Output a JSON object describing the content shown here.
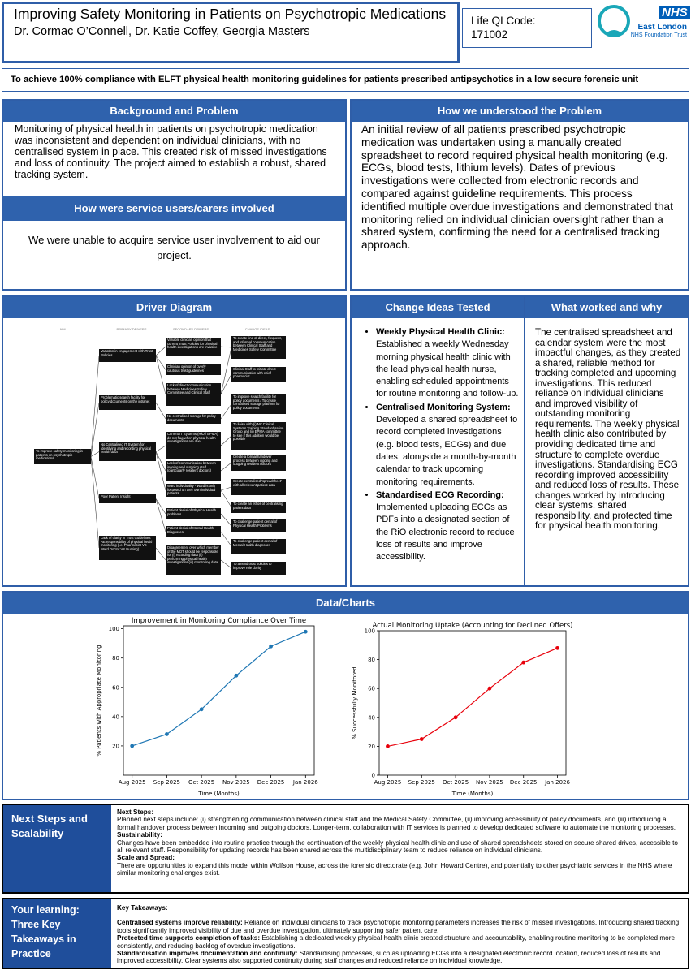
{
  "header": {
    "title": "Improving Safety Monitoring in Patients on Psychotropic Medications",
    "authors": "Dr. Cormac O’Connell, Dr. Katie Coffey, Georgia Masters",
    "qi_label": "Life QI Code:",
    "qi_code": "171002",
    "logo": {
      "nhs": "NHS",
      "org": "East London",
      "trust": "NHS Foundation Trust"
    }
  },
  "aim": "To achieve 100% compliance with ELFT physical health monitoring guidelines for patients prescribed antipsychotics in a low secure forensic unit",
  "background": {
    "heading": "Background and Problem",
    "text": "Monitoring of physical health in patients on psychotropic medication was inconsistent and dependent on individual clinicians, with no centralised system in place. This created risk of missed investigations and loss of continuity. The project aimed to establish a robust, shared tracking system."
  },
  "service_users": {
    "heading": "How were service users/carers involved",
    "text": "We were unable to acquire service user involvement to aid our project."
  },
  "understanding": {
    "heading": "How we understood the Problem",
    "text": "An initial review of all patients prescribed psychotropic medication was undertaken using a manually created spreadsheet to record required physical health monitoring (e.g. ECGs, blood tests, lithium levels). Dates of previous investigations were collected from electronic records and compared against guideline requirements. This process identified multiple overdue investigations and demonstrated that monitoring relied on individual clinician oversight rather than a shared system, confirming the need for a centralised tracking approach."
  },
  "driver_diagram": {
    "heading": "Driver Diagram",
    "column_headers": [
      "AIM",
      "PRIMARY DRIVERS",
      "SECONDARY DRIVERS",
      "CHANGE IDEAS"
    ],
    "aim": "To improve safety monitoring in patients on psychotropic medications",
    "primary_drivers": [
      "Variation in engagement with Trust Policies",
      "Problematic search facility for policy documents on the intranet",
      "No Centralised IT System for Identifying and recording physical health data",
      "Poor Patient Insight",
      "Lack of clarity in Trust Guidelines RE responsibility of physical health monitoring (i.e. Pharmacist VS Ward Doctor VS Nursing)"
    ],
    "secondary_drivers": [
      "Variable clinician opinion that current Trust Policies for physical health investigations are invasive",
      "Clinician opinion of overly cautious trust guidelines",
      "Lack of direct communication between Medicines Safety Committee and Clinical Staff",
      "No centralised storage for policy documents",
      "Current IT Systems (RiO / EPMA) do not flag when physical health investigations are due",
      "Lack of communication between ingoing and outgoing staff (particularly resident doctors)",
      "Ward individuality - Ward is only focussed on their own individual patients",
      "Patient denial of Physical Health problems",
      "Patient denial of Mental Health Diagnoses",
      "Disagreement over which member of the MDT should be responsible for (i) recording data (ii) performing physical health investigations (iii) monitoring data"
    ],
    "change_ideas": [
      "To create line of direct, frequent, and informal communication between Clinical Staff and Medicines Safety Committee",
      "Clinical Staff to initiate direct communication with chief pharmacist",
      "To improve search facility for policy documents / To create centralised storage platform for policy documents",
      "To liaise with (i) NV Clinical Systems Training Standardisation Group and (ii) EPMA committee to see if this addition would be possible",
      "Create a formal handover process between ingoing and outgoing resident doctors",
      "Create centralised 'spreadsheet' with all relevant patient data",
      "To create an ethos of centralising patient data",
      "To challenge patient denial of Physical Health Problems",
      "To challenge patient denial of Mental Health diagnoses",
      "To amend trust policies to improve role clarity"
    ]
  },
  "change_ideas": {
    "heading": "Change Ideas Tested",
    "items": [
      {
        "lead": "Weekly Physical Health Clinic:",
        "text": "Established a weekly Wednesday morning physical health clinic with the lead physical health nurse, enabling scheduled appointments for routine monitoring and follow-up."
      },
      {
        "lead": "Centralised Monitoring System:",
        "text": "Developed a shared spreadsheet to record completed investigations (e.g. blood tests, ECGs) and due dates, alongside a month-by-month calendar to track upcoming monitoring requirements."
      },
      {
        "lead": "Standardised ECG Recording:",
        "text": "Implemented uploading ECGs as PDFs into a designated section of the RiO electronic record to reduce loss of results and improve accessibility."
      }
    ]
  },
  "what_worked": {
    "heading": "What worked and why",
    "text": "The centralised spreadsheet and calendar system were the most impactful changes, as they created a shared, reliable method for tracking completed and upcoming investigations. This reduced reliance on individual clinicians and improved visibility of outstanding monitoring requirements. The weekly physical health clinic also contributed by providing dedicated time and structure to complete overdue investigations. Standardising ECG recording improved accessibility and reduced loss of results. These changes worked by introducing clear systems, shared responsibility, and protected time for physical health monitoring."
  },
  "data_heading": "Data/Charts",
  "charts": [
    {
      "type": "line",
      "title": "Improvement in Monitoring Compliance Over Time",
      "x_label": "Time (Months)",
      "y_label": "% Patients with Appropriate Monitoring",
      "categories": [
        "Aug 2025",
        "Sep 2025",
        "Oct 2025",
        "Nov 2025",
        "Dec 2025",
        "Jan 2026"
      ],
      "values": [
        20,
        28,
        45,
        68,
        88,
        98
      ],
      "color": "#1f77b4",
      "ylim": [
        0,
        102
      ],
      "yticks": [
        20,
        40,
        60,
        80,
        100
      ]
    },
    {
      "type": "line",
      "title": "Actual Monitoring Uptake (Accounting for Declined Offers)",
      "x_label": "Time (Months)",
      "y_label": "% Successfully Monitored",
      "categories": [
        "Aug 2025",
        "Sep 2025",
        "Oct 2025",
        "Nov 2025",
        "Dec 2025",
        "Jan 2026"
      ],
      "values": [
        20,
        25,
        40,
        60,
        78,
        88
      ],
      "color": "#e8000b",
      "ylim": [
        0,
        100
      ],
      "yticks": [
        0,
        20,
        40,
        60,
        80,
        100
      ]
    }
  ],
  "next_steps": {
    "label": "Next Steps and Scalability",
    "sections": [
      {
        "heading": "Next Steps:",
        "text": "Planned next steps include: (i) strengthening communication between clinical staff and the Medical Safety Committee, (ii) improving accessibility of policy documents, and (iii) introducing a formal handover process between incoming and outgoing doctors. Longer-term, collaboration with IT services is planned to develop dedicated software to automate the monitoring processes."
      },
      {
        "heading": "Sustainability:",
        "text": "Changes have been embedded into routine practice through the continuation of the weekly physical health clinic and use of shared spreadsheets stored on secure shared drives, accessible to all relevant staff. Responsibility for updating records has been shared across the multidisciplinary team to reduce reliance on individual clinicians."
      },
      {
        "heading": "Scale and Spread:",
        "text": "There are opportunities to expand this model within Wolfson House, across the forensic directorate (e.g. John Howard Centre), and potentially to other psychiatric services in the NHS where similar monitoring challenges exist."
      }
    ]
  },
  "learning": {
    "label": "Your learning: Three Key Takeaways in Practice",
    "heading": "Key Takeaways:",
    "items": [
      {
        "lead": "Centralised systems improve reliability:",
        "text": "Reliance on individual clinicians to track psychotropic monitoring parameters increases the risk of missed investigations. Introducing shared tracking tools significantly improved visibility of due and overdue investigation, ultimately supporting safer patient care."
      },
      {
        "lead": "Protected time supports completion of tasks:",
        "text": "Establishing a dedicated weekly physical health clinic created structure and accountability, enabling routine monitoring to be completed more consistently, and reducing backlog of overdue investigations."
      },
      {
        "lead": "Standardisation improves documentation and continuity:",
        "text": "Standardising processes, such as uploading ECGs into a designated electronic record location, reduced loss of results and improved accessibility. Clear systems also supported continuity during staff changes and reduced reliance on individual knowledge."
      }
    ]
  }
}
